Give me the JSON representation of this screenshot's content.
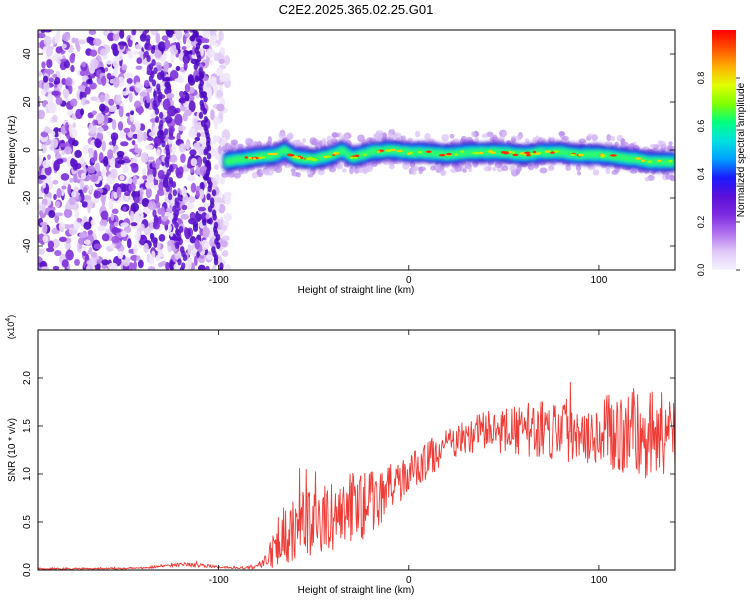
{
  "title": "C2E2.2025.365.02.25.G01",
  "chart_data": [
    {
      "type": "heatmap",
      "xlabel": "Height of straight line (km)",
      "ylabel": "Frequency (Hz)",
      "xlim": [
        -195,
        140
      ],
      "ylim": [
        -50,
        50
      ],
      "xticks": [
        -100,
        0,
        100
      ],
      "yticks": [
        -40,
        -20,
        0,
        20,
        40
      ],
      "band": {
        "x": [
          -97,
          -90,
          -80,
          -70,
          -65,
          -60,
          -50,
          -40,
          -35,
          -30,
          -20,
          -10,
          0,
          10,
          20,
          30,
          40,
          50,
          60,
          70,
          80,
          90,
          100,
          110,
          120,
          130,
          140
        ],
        "center_hz": [
          -5,
          -4,
          -3,
          -2,
          0,
          -3,
          -4,
          -2,
          0,
          -3,
          -1,
          0,
          -1,
          -1,
          -2,
          -1,
          -1,
          -1,
          -2,
          -1,
          -1,
          -2,
          -2,
          -3,
          -4,
          -5,
          -5
        ]
      },
      "colorbar": {
        "label": "Normalized spectral amplitude",
        "range": [
          0,
          1
        ],
        "ticks": [
          "0.0",
          "0.2",
          "0.4",
          "0.6",
          "0.8"
        ],
        "colors": [
          "#f4f4ff",
          "#e0c8f8",
          "#b070ee",
          "#7d2be0",
          "#5a0fd8",
          "#1a1aff",
          "#00a0ff",
          "#00e0e0",
          "#00ff80",
          "#80ff00",
          "#e0ff00",
          "#ffb000",
          "#ff5000",
          "#ff0000"
        ]
      }
    },
    {
      "type": "line",
      "xlabel": "Height of straight line (km)",
      "ylabel": "SNR (10 * v/v)",
      "scale_note_base": "(x10",
      "scale_note_exp": "4",
      "xlim": [
        -195,
        140
      ],
      "ylim": [
        0,
        2.5
      ],
      "xticks": [
        -100,
        0,
        100
      ],
      "yticks": [
        0.0,
        0.5,
        1.0,
        1.5,
        2.0
      ],
      "ytick_labels": [
        "0.0",
        "0.5",
        "1.0",
        "1.5",
        "2.0"
      ],
      "series": [
        {
          "name": "SNR",
          "color": "#ef3b36",
          "envelope": {
            "x": [
              -195,
              -140,
              -120,
              -110,
              -100,
              -90,
              -80,
              -75,
              -70,
              -60,
              -50,
              -40,
              -30,
              -20,
              -10,
              0,
              10,
              20,
              30,
              40,
              60,
              80,
              100,
              120,
              140
            ],
            "center": [
              0.01,
              0.02,
              0.06,
              0.05,
              0.03,
              0.02,
              0.03,
              0.12,
              0.3,
              0.45,
              0.5,
              0.55,
              0.65,
              0.7,
              0.85,
              1.0,
              1.15,
              1.3,
              1.38,
              1.45,
              1.45,
              1.48,
              1.45,
              1.42,
              1.42
            ],
            "amplitude": [
              0.01,
              0.01,
              0.02,
              0.02,
              0.01,
              0.01,
              0.02,
              0.08,
              0.3,
              0.35,
              0.35,
              0.35,
              0.4,
              0.35,
              0.25,
              0.2,
              0.2,
              0.18,
              0.18,
              0.2,
              0.28,
              0.35,
              0.35,
              0.5,
              0.45
            ]
          }
        }
      ]
    }
  ]
}
